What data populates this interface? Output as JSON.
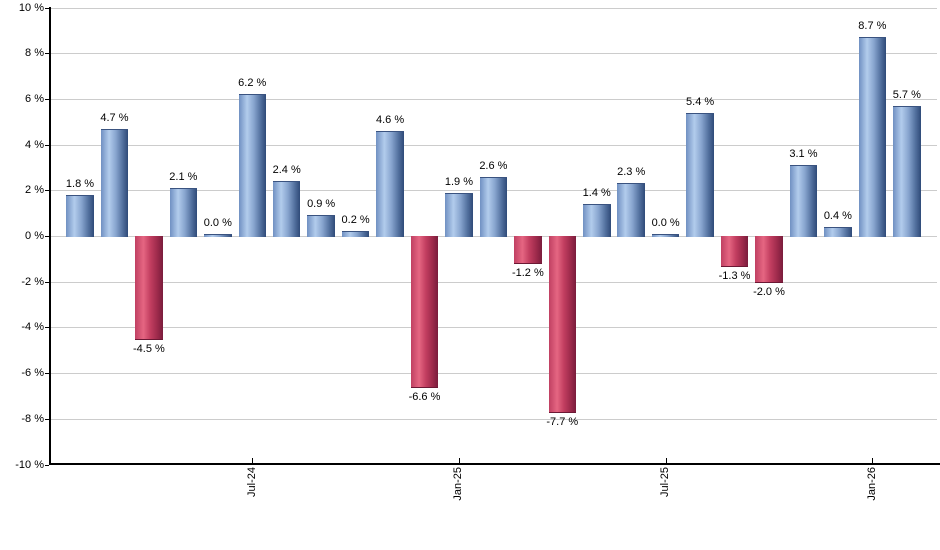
{
  "chart_data": {
    "type": "bar",
    "values": [
      1.8,
      4.7,
      -4.5,
      2.1,
      0.0,
      6.2,
      2.4,
      0.9,
      0.2,
      4.6,
      -6.6,
      1.9,
      2.6,
      -1.2,
      -7.7,
      1.4,
      2.3,
      0.0,
      5.4,
      -1.3,
      -2.0,
      3.1,
      0.4,
      8.7,
      5.7
    ],
    "bar_labels": [
      "1.8 %",
      "4.7 %",
      "-4.5 %",
      "2.1 %",
      "0.0 %",
      "6.2 %",
      "2.4 %",
      "0.9 %",
      "0.2 %",
      "4.6 %",
      "-6.6 %",
      "1.9 %",
      "2.6 %",
      "-1.2 %",
      "-7.7 %",
      "1.4 %",
      "2.3 %",
      "0.0 %",
      "5.4 %",
      "-1.3 %",
      "-2.0 %",
      "3.1 %",
      "0.4 %",
      "8.7 %",
      "5.7 %"
    ],
    "x_tick_labels": [
      "Jul-24",
      "Jan-25",
      "Jul-25",
      "Jan-26"
    ],
    "x_tick_bar_indices": [
      5,
      11,
      17,
      23
    ],
    "y_tick_labels": [
      "10 %",
      "8 %",
      "6 %",
      "4 %",
      "2 %",
      "0 %",
      "-2 %",
      "-4 %",
      "-6 %",
      "-8 %",
      "-10 %"
    ],
    "y_tick_values": [
      10,
      8,
      6,
      4,
      2,
      0,
      -2,
      -4,
      -6,
      -8,
      -10
    ],
    "ylim": [
      -10,
      10
    ],
    "grid": true,
    "legend": false,
    "colors": {
      "positive_gradient": [
        "#7090C2",
        "#B2CCEC",
        "#88A5CF",
        "#53719F",
        "#2F4A78"
      ],
      "negative_gradient": [
        "#C04062",
        "#E56682",
        "#C23E60",
        "#9D2A4B",
        "#7A1C3C"
      ],
      "gridline": "#CCCCCC",
      "axis": "#000000",
      "label_text": "#000000",
      "background": "#FFFFFF"
    }
  }
}
